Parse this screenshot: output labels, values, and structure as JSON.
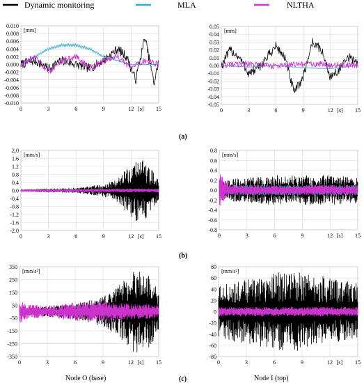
{
  "legend": [
    {
      "label": "Dynamic monitoring",
      "color": "#000000"
    },
    {
      "label": "MLA",
      "color": "#33aacc"
    },
    {
      "label": "NLTHA",
      "color": "#cc33cc"
    }
  ],
  "row_labels": [
    "(a)",
    "(b)",
    "(c)"
  ],
  "node_labels": [
    "Node O (base)",
    "Node I (top)"
  ],
  "chart_data": [
    {
      "id": "a-left",
      "type": "line",
      "ylabel": "[mm]",
      "xlabel": "[s]",
      "xlim": [
        0,
        15
      ],
      "ylim": [
        -0.01,
        0.01
      ],
      "xticks": [
        "0",
        "3",
        "6",
        "9",
        "12",
        "15"
      ],
      "yticks": [
        "0.010",
        "0.008",
        "0.006",
        "0.004",
        "0.002",
        "0.000",
        "-0.002",
        "-0.004",
        "-0.006",
        "-0.008",
        "-0.010"
      ],
      "grid": true,
      "series": [
        {
          "name": "Dynamic monitoring",
          "x": [
            0,
            1.5,
            3,
            4.5,
            6,
            7.5,
            9,
            10.5,
            11.5,
            12.5,
            13.5,
            14.5,
            15
          ],
          "y": [
            0.0,
            0.001,
            -0.001,
            0.001,
            0.0,
            -0.001,
            0.001,
            0.004,
            0.002,
            -0.004,
            0.007,
            -0.005,
            0.001
          ]
        },
        {
          "name": "MLA",
          "x": [
            0,
            1.5,
            3,
            4.5,
            6,
            7.5,
            9,
            10.5,
            12,
            13.5,
            15
          ],
          "y": [
            0.0,
            0.002,
            0.004,
            0.005,
            0.005,
            0.004,
            0.002,
            0.001,
            0.0,
            0.0,
            0.0
          ]
        },
        {
          "name": "NLTHA",
          "x": [
            0,
            1.5,
            3,
            4.5,
            6,
            7.5,
            9,
            10.5,
            12,
            13.5,
            15
          ],
          "y": [
            0.0,
            0.002,
            -0.002,
            0.001,
            0.002,
            -0.001,
            0.001,
            0.002,
            -0.001,
            0.001,
            0.0
          ]
        }
      ]
    },
    {
      "id": "a-right",
      "type": "line",
      "ylabel": "[mm]",
      "xlabel": "[s]",
      "xlim": [
        0,
        15
      ],
      "ylim": [
        -0.05,
        0.05
      ],
      "xticks": [
        "0",
        "3",
        "6",
        "9",
        "12",
        "15"
      ],
      "yticks": [
        "0.05",
        "0.04",
        "0.03",
        "0.02",
        "0.01",
        "0.00",
        "-0.01",
        "-0.02",
        "-0.03",
        "-0.04",
        "-0.05"
      ],
      "grid": true,
      "series": [
        {
          "name": "Dynamic monitoring",
          "x": [
            0,
            1,
            2,
            3,
            4,
            5,
            6,
            7,
            8,
            9,
            10,
            11,
            12,
            13,
            14,
            15
          ],
          "y": [
            0.0,
            0.02,
            0.01,
            -0.01,
            -0.005,
            0.01,
            0.025,
            0.01,
            -0.035,
            -0.015,
            0.03,
            0.02,
            -0.015,
            -0.005,
            0.01,
            0.005
          ]
        },
        {
          "name": "MLA",
          "x": [
            0,
            3,
            6,
            9,
            12,
            15
          ],
          "y": [
            0.0,
            -0.002,
            0.0,
            -0.003,
            -0.004,
            0.0
          ]
        },
        {
          "name": "NLTHA",
          "x": [
            0,
            3,
            6,
            9,
            12,
            15
          ],
          "y": [
            0.0,
            0.002,
            -0.001,
            0.002,
            0.001,
            0.0
          ]
        }
      ]
    },
    {
      "id": "b-left",
      "type": "line",
      "ylabel": "[mm/s]",
      "xlabel": "[s]",
      "xlim": [
        0,
        15
      ],
      "ylim": [
        -2.0,
        2.0
      ],
      "xticks": [
        "0",
        "3",
        "6",
        "9",
        "12",
        "15"
      ],
      "yticks": [
        "2.0",
        "1.6",
        "1.2",
        "0.8",
        "0.4",
        "0.0",
        "-0.4",
        "-0.8",
        "-1.2",
        "-1.6",
        "-2.0"
      ],
      "grid": true,
      "series": [
        {
          "name": "Dynamic monitoring",
          "amplitude_envelope": {
            "x": [
              0,
              3,
              6,
              9,
              10.5,
              12,
              13,
              15
            ],
            "amp": [
              0.05,
              0.08,
              0.12,
              0.3,
              0.6,
              1.3,
              1.7,
              0.6
            ]
          }
        },
        {
          "name": "MLA",
          "amplitude_envelope": {
            "x": [
              0,
              15
            ],
            "amp": [
              0.05,
              0.05
            ]
          }
        },
        {
          "name": "NLTHA",
          "amplitude_envelope": {
            "x": [
              0,
              7,
              15
            ],
            "amp": [
              0.05,
              0.08,
              0.08
            ]
          }
        }
      ]
    },
    {
      "id": "b-right",
      "type": "line",
      "ylabel": "[mm/s]",
      "xlabel": "[s]",
      "xlim": [
        0,
        15
      ],
      "ylim": [
        -0.8,
        0.8
      ],
      "xticks": [
        "0",
        "3",
        "6",
        "9",
        "12",
        "15"
      ],
      "yticks": [
        "0.8",
        "0.6",
        "0.4",
        "0.2",
        "0.0",
        "-0.2",
        "-0.4",
        "-0.6",
        "-0.8"
      ],
      "grid": true,
      "series": [
        {
          "name": "Dynamic monitoring",
          "amplitude_envelope": {
            "x": [
              0,
              3,
              6,
              9,
              12,
              15
            ],
            "amp": [
              0.2,
              0.25,
              0.3,
              0.3,
              0.3,
              0.25
            ]
          }
        },
        {
          "name": "MLA",
          "amplitude_envelope": {
            "x": [
              0,
              15
            ],
            "amp": [
              0.1,
              0.1
            ]
          }
        },
        {
          "name": "NLTHA",
          "amplitude_envelope": {
            "x": [
              0,
              1,
              15
            ],
            "amp": [
              0.35,
              0.1,
              0.1
            ]
          }
        }
      ]
    },
    {
      "id": "c-left",
      "type": "line",
      "ylabel": "[mm/s²]",
      "xlabel": "[s]",
      "xlim": [
        0,
        15
      ],
      "ylim": [
        -350,
        350
      ],
      "xticks": [
        "0",
        "3",
        "6",
        "9",
        "12",
        "15"
      ],
      "yticks": [
        "350",
        "250",
        "150",
        "50",
        "-50",
        "-150",
        "-250",
        "-350"
      ],
      "grid": true,
      "series": [
        {
          "name": "Dynamic monitoring",
          "amplitude_envelope": {
            "x": [
              0,
              3,
              6,
              9,
              11,
              12.5,
              14,
              15
            ],
            "amp": [
              20,
              40,
              60,
              120,
              220,
              330,
              280,
              150
            ]
          }
        },
        {
          "name": "MLA",
          "amplitude_envelope": {
            "x": [
              0,
              15
            ],
            "amp": [
              15,
              15
            ]
          }
        },
        {
          "name": "NLTHA",
          "amplitude_envelope": {
            "x": [
              0,
              0.5,
              3,
              6,
              9,
              12,
              15
            ],
            "amp": [
              100,
              60,
              40,
              70,
              80,
              60,
              50
            ]
          }
        }
      ]
    },
    {
      "id": "c-right",
      "type": "line",
      "ylabel": "[mm/s²]",
      "xlabel": "[s]",
      "xlim": [
        0,
        15
      ],
      "ylim": [
        -80,
        80
      ],
      "xticks": [
        "0",
        "3",
        "6",
        "9",
        "12",
        "15"
      ],
      "yticks": [
        "80",
        "60",
        "40",
        "20",
        "0",
        "-20",
        "-40",
        "-60",
        "-80"
      ],
      "grid": true,
      "series": [
        {
          "name": "Dynamic monitoring",
          "amplitude_envelope": {
            "x": [
              0,
              3,
              6,
              9,
              12,
              15
            ],
            "amp": [
              45,
              60,
              70,
              70,
              60,
              50
            ]
          }
        },
        {
          "name": "MLA",
          "amplitude_envelope": {
            "x": [
              0,
              15
            ],
            "amp": [
              5,
              5
            ]
          }
        },
        {
          "name": "NLTHA",
          "amplitude_envelope": {
            "x": [
              0,
              15
            ],
            "amp": [
              8,
              8
            ]
          }
        }
      ]
    }
  ]
}
